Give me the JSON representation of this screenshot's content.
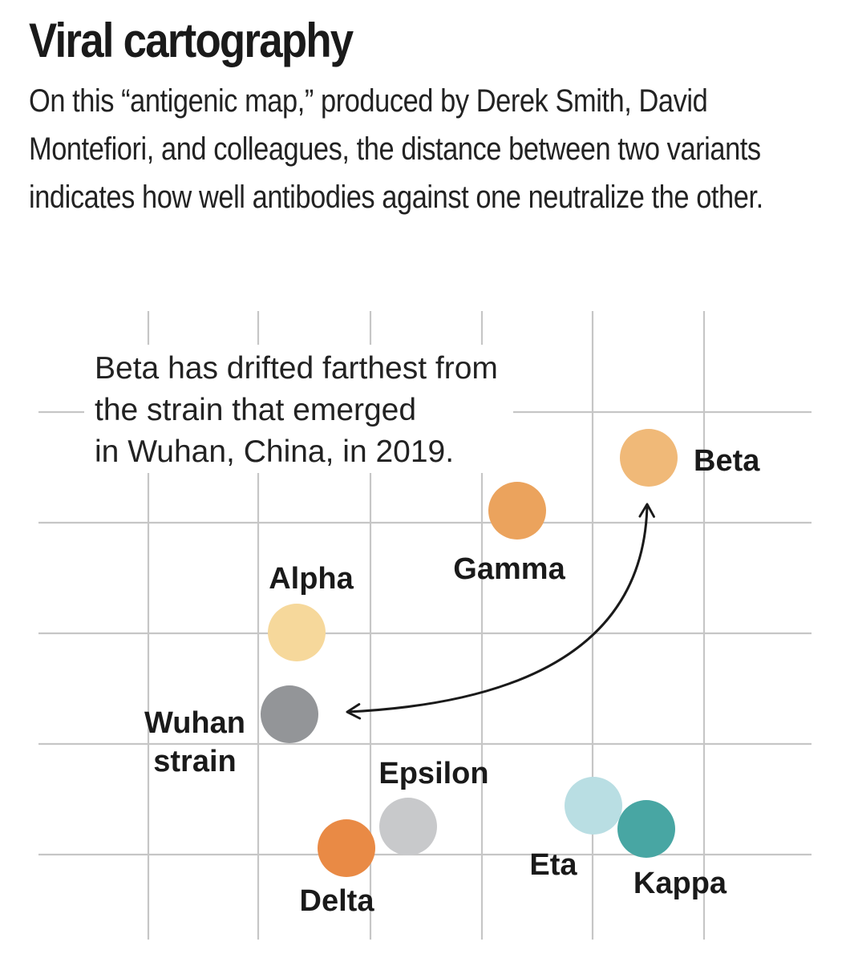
{
  "title": "Viral cartography",
  "subtitle": "On this “antigenic map,” produced by Derek Smith, David Montefiori, and colleagues, the distance between two variants indicates how  well antibodies against one neutralize the other.",
  "annotation": {
    "lines": [
      "Beta has drifted farthest from",
      "the strain that emerged",
      "in Wuhan, China, in 2019."
    ]
  },
  "variants": [
    {
      "id": "wuhan",
      "label_lines": [
        "Wuhan",
        "strain"
      ],
      "color": "#939598"
    },
    {
      "id": "alpha",
      "label_lines": [
        "Alpha"
      ],
      "color": "#f6d89b"
    },
    {
      "id": "gamma",
      "label_lines": [
        "Gamma"
      ],
      "color": "#eba35d"
    },
    {
      "id": "beta",
      "label_lines": [
        "Beta"
      ],
      "color": "#f0b978"
    },
    {
      "id": "epsilon",
      "label_lines": [
        "Epsilon"
      ],
      "color": "#c8c9cb"
    },
    {
      "id": "delta",
      "label_lines": [
        "Delta"
      ],
      "color": "#e98a45"
    },
    {
      "id": "eta",
      "label_lines": [
        "Eta"
      ],
      "color": "#b9dee3"
    },
    {
      "id": "kappa",
      "label_lines": [
        "Kappa"
      ],
      "color": "#48a6a3"
    }
  ],
  "colors": {
    "grid": "#c6c6c6",
    "arrow": "#1a1a1a",
    "text": "#1a1a1a"
  }
}
